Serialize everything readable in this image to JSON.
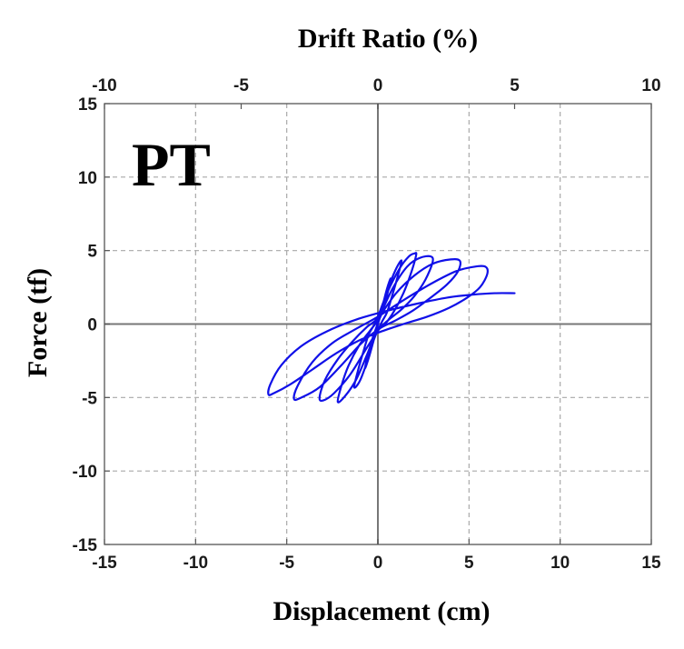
{
  "chart_data": {
    "type": "line",
    "panel_label": "PT",
    "xlabel": "Displacement (cm)",
    "ylabel": "Force (tf)",
    "x2label": "Drift Ratio (%)",
    "xlim": [
      -15,
      15
    ],
    "ylim": [
      -15,
      15
    ],
    "x2lim": [
      -10,
      10
    ],
    "x_ticks": [
      -15,
      -10,
      -5,
      0,
      5,
      10,
      15
    ],
    "y_ticks": [
      -15,
      -10,
      -5,
      0,
      5,
      10,
      15
    ],
    "x2_ticks": [
      -10,
      -5,
      0,
      5,
      10
    ],
    "grid": true,
    "zero_lines": true,
    "colors": {
      "series": "#1010e8",
      "grid": "#a8a8a8",
      "zero_line": "#777777",
      "frame": "#555555"
    },
    "series": [
      {
        "points": [
          [
            0,
            0
          ],
          [
            0.25,
            1.2
          ],
          [
            0.5,
            2.4
          ],
          [
            0.7,
            3.1
          ],
          [
            0.55,
            2.2
          ],
          [
            0.3,
            1.0
          ],
          [
            0.05,
            0.2
          ],
          [
            -0.25,
            -1.2
          ],
          [
            -0.5,
            -2.3
          ],
          [
            -0.7,
            -3.0
          ],
          [
            -0.55,
            -2.1
          ],
          [
            -0.3,
            -1.0
          ],
          [
            0,
            0.1
          ],
          [
            0.4,
            1.9
          ],
          [
            0.8,
            3.2
          ],
          [
            1.1,
            4.0
          ],
          [
            1.3,
            4.3
          ],
          [
            1.1,
            3.3
          ],
          [
            0.8,
            2.0
          ],
          [
            0.5,
            0.8
          ],
          [
            0.2,
            0.1
          ],
          [
            -0.2,
            -1.0
          ],
          [
            -0.6,
            -2.6
          ],
          [
            -1.0,
            -3.9
          ],
          [
            -1.3,
            -4.3
          ],
          [
            -1.1,
            -3.2
          ],
          [
            -0.8,
            -1.9
          ],
          [
            -0.5,
            -0.7
          ],
          [
            -0.1,
            0.2
          ],
          [
            0.5,
            2.1
          ],
          [
            1.2,
            3.8
          ],
          [
            1.7,
            4.6
          ],
          [
            2.0,
            4.8
          ],
          [
            2.1,
            4.7
          ],
          [
            1.8,
            3.4
          ],
          [
            1.4,
            2.1
          ],
          [
            0.9,
            0.9
          ],
          [
            0.4,
            0.0
          ],
          [
            -0.1,
            -0.6
          ],
          [
            -0.6,
            -2.1
          ],
          [
            -1.2,
            -3.8
          ],
          [
            -1.8,
            -4.9
          ],
          [
            -2.2,
            -5.3
          ],
          [
            -2.0,
            -4.2
          ],
          [
            -1.6,
            -2.8
          ],
          [
            -1.0,
            -1.4
          ],
          [
            -0.4,
            -0.4
          ],
          [
            0,
            0.3
          ],
          [
            0.8,
            2.4
          ],
          [
            1.6,
            3.9
          ],
          [
            2.3,
            4.5
          ],
          [
            2.9,
            4.6
          ],
          [
            3.0,
            4.2
          ],
          [
            2.6,
            3.0
          ],
          [
            2.0,
            1.9
          ],
          [
            1.3,
            1.0
          ],
          [
            0.6,
            0.3
          ],
          [
            0.1,
            -0.3
          ],
          [
            -0.6,
            -1.6
          ],
          [
            -1.5,
            -3.4
          ],
          [
            -2.4,
            -4.7
          ],
          [
            -3.0,
            -5.2
          ],
          [
            -3.2,
            -5.0
          ],
          [
            -2.9,
            -3.8
          ],
          [
            -2.2,
            -2.4
          ],
          [
            -1.4,
            -1.2
          ],
          [
            -0.6,
            -0.2
          ],
          [
            0,
            0.4
          ],
          [
            1.0,
            2.1
          ],
          [
            2.0,
            3.3
          ],
          [
            3.0,
            4.1
          ],
          [
            4.0,
            4.4
          ],
          [
            4.5,
            4.3
          ],
          [
            4.4,
            3.6
          ],
          [
            3.8,
            2.7
          ],
          [
            2.9,
            1.8
          ],
          [
            1.9,
            0.9
          ],
          [
            0.9,
            0.2
          ],
          [
            0.1,
            -0.3
          ],
          [
            -0.9,
            -1.3
          ],
          [
            -2.0,
            -2.8
          ],
          [
            -3.2,
            -4.3
          ],
          [
            -4.2,
            -5.0
          ],
          [
            -4.6,
            -5.1
          ],
          [
            -4.4,
            -4.2
          ],
          [
            -3.6,
            -2.6
          ],
          [
            -2.5,
            -1.3
          ],
          [
            -1.3,
            -0.4
          ],
          [
            0,
            0.5
          ],
          [
            1.5,
            1.7
          ],
          [
            3.0,
            2.8
          ],
          [
            4.3,
            3.6
          ],
          [
            5.3,
            3.9
          ],
          [
            5.9,
            3.9
          ],
          [
            6.0,
            3.4
          ],
          [
            5.6,
            2.5
          ],
          [
            4.9,
            1.8
          ],
          [
            3.9,
            1.1
          ],
          [
            2.7,
            0.5
          ],
          [
            1.4,
            0.0
          ],
          [
            0.2,
            -0.5
          ],
          [
            -1.0,
            -1.1
          ],
          [
            -2.3,
            -2.0
          ],
          [
            -3.6,
            -3.1
          ],
          [
            -4.8,
            -4.1
          ],
          [
            -5.7,
            -4.7
          ],
          [
            -6.0,
            -4.8
          ],
          [
            -5.9,
            -4.1
          ],
          [
            -5.3,
            -2.8
          ],
          [
            -4.2,
            -1.5
          ],
          [
            -2.8,
            -0.5
          ],
          [
            -1.2,
            0.3
          ],
          [
            0.5,
            0.9
          ],
          [
            2.2,
            1.4
          ],
          [
            3.8,
            1.8
          ],
          [
            5.2,
            2.0
          ],
          [
            6.4,
            2.1
          ],
          [
            7.5,
            2.1
          ]
        ]
      }
    ]
  }
}
